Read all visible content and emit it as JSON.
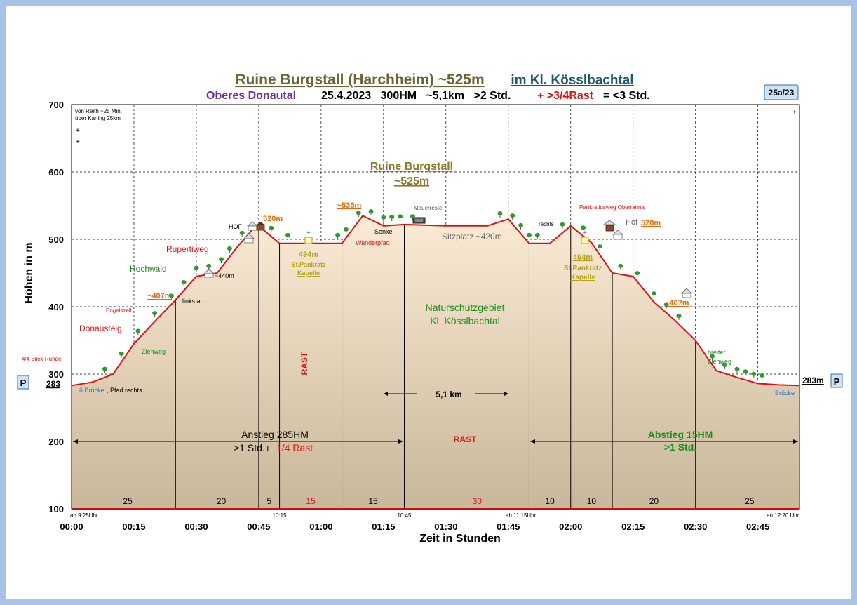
{
  "chart_data": {
    "type": "area",
    "title_main": "Ruine Burgstall (Harchheim) ~525m",
    "title_region": "im Kl. Kösslbachtal",
    "subtitle_area": "Oberes Donautal",
    "subtitle_info": "25.4.2023   300HM   ~5,1km   >2 Std.",
    "subtitle_rest": "+ >3/4Rast",
    "subtitle_total": "= <3 Std.",
    "badge": "25a/23",
    "xlabel": "Zeit in Stunden",
    "ylabel": "Höhen in m",
    "ylim": [
      100,
      700
    ],
    "xlim": [
      0,
      175
    ],
    "x_unit": "minutes",
    "y_ticks": [
      "100",
      "200",
      "300",
      "400",
      "500",
      "600",
      "700"
    ],
    "x_ticks": [
      "00:00",
      "00:15",
      "00:30",
      "00:45",
      "01:00",
      "01:15",
      "01:30",
      "01:45",
      "02:00",
      "02:15",
      "02:30",
      "02:45"
    ],
    "grid": true,
    "profile": {
      "x": [
        0,
        5,
        10,
        15,
        20,
        25,
        30,
        35,
        40,
        44,
        45,
        50,
        55,
        60,
        65,
        70,
        75,
        80,
        90,
        95,
        100,
        105,
        110,
        115,
        120,
        125,
        130,
        135,
        140,
        145,
        150,
        155,
        160,
        165,
        170,
        175
      ],
      "y": [
        283,
        288,
        300,
        345,
        378,
        410,
        445,
        450,
        490,
        518,
        520,
        494,
        494,
        494,
        494,
        535,
        520,
        522,
        520,
        520,
        520,
        530,
        494,
        494,
        520,
        495,
        450,
        445,
        407,
        380,
        350,
        305,
        295,
        286,
        284,
        283
      ]
    },
    "segments": [
      {
        "label": "25",
        "x": 13.5,
        "rest": false
      },
      {
        "label": "20",
        "x": 36,
        "rest": false
      },
      {
        "label": "5",
        "x": 47.5,
        "rest": false
      },
      {
        "label": "15",
        "x": 57.5,
        "rest": true
      },
      {
        "label": "15",
        "x": 72.5,
        "rest": false
      },
      {
        "label": "30",
        "x": 97.5,
        "rest": true
      },
      {
        "label": "10",
        "x": 115,
        "rest": false
      },
      {
        "label": "10",
        "x": 125,
        "rest": false
      },
      {
        "label": "20",
        "x": 140,
        "rest": false
      },
      {
        "label": "25",
        "x": 163,
        "rest": false
      }
    ],
    "segment_boundaries": [
      25,
      45,
      50,
      65,
      80,
      110,
      120,
      130,
      150,
      175
    ],
    "time_marks": [
      {
        "label": "ab 9:25Uhr",
        "x": 3
      },
      {
        "label": "10:15",
        "x": 50
      },
      {
        "label": "10:45",
        "x": 80
      },
      {
        "label": "ab 11:15Uhr",
        "x": 108
      },
      {
        "label": "an 12:20 Uhr",
        "x": 171
      }
    ],
    "annotations": {
      "peak_title": "Ruine Burgstall",
      "peak_height": "~525m",
      "peak_535": "~535m",
      "mauerreste": "Mauerreste",
      "senke": "Senke",
      "wanderpfad": "Wanderpfad",
      "sitzplatz": "Sitzplatz ~420m",
      "hof_left": "HOF",
      "h520_left": "520m",
      "h520_right": "520m",
      "hof_right": "Hof",
      "chapel_left_h": "494m",
      "chapel_left_name1": "St.Pankratz",
      "chapel_left_name2": "Kapelle",
      "chapel_right_h": "494m",
      "chapel_right_name1": "St.Pankratz",
      "chapel_right_name2": "Kapelle",
      "rupertiweg": "Rupertiweg",
      "hochwald": "Hochwald",
      "h440": "~440m",
      "h407_left": "~407m",
      "engelszell": "Engelszell",
      "links_ab": "links ab",
      "donausteig": "Donausteig",
      "ziehweg": "Ziehweg",
      "blick_runde": "4/4 Blick-Runde",
      "h283_left": "283",
      "bruecke_left_1": "ü.Brücke",
      "bruecke_left_2": ", Pfad rechts",
      "reith_1": "von Reith ~25 Min.",
      "reith_2": "über Karling 25km",
      "rast_vertical": "RAST",
      "nsg_1": "Naturschutzgebiet",
      "nsg_2": "Kl. Kösslbachtal",
      "distance": "5,1 km",
      "rast_mid": "RAST",
      "anstieg_1": "Anstieg 285HM",
      "anstieg_2": ">1 Std.+",
      "anstieg_rest": "1/4 Rast",
      "abstieg_1": "Abstieg 15HM",
      "abstieg_2": ">1 Std.",
      "pankratiusweg": "Pankratiusweg Oberranna",
      "rechts": "rechts",
      "h407_right": "~407m",
      "breiter": "breiter",
      "ziehweg_right": "Ziehweg",
      "h283_right": "283m",
      "bruecke_right": "Brücke",
      "parking": "P"
    },
    "colors": {
      "line": "#e01010",
      "fill_top": "#fcebd5",
      "fill_bottom": "#c9b79a",
      "title": "#6b6436",
      "region": "#1f5a6b",
      "purple": "#7030a0",
      "green": "#1e8c1e",
      "orange": "#e06a10",
      "olive": "#b4a21c",
      "red": "#e01010"
    }
  }
}
